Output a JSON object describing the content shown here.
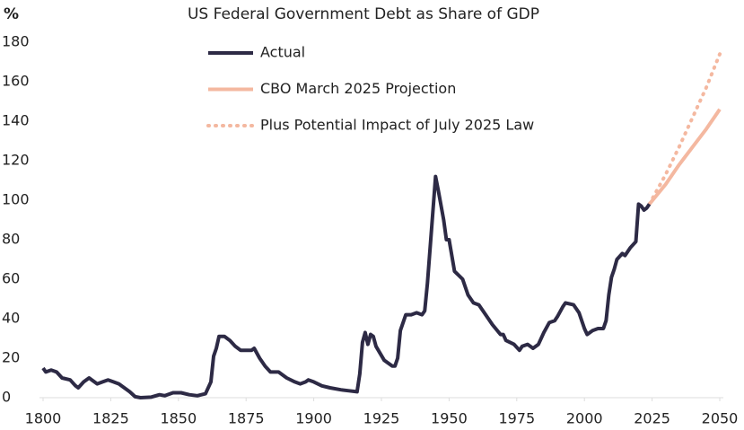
{
  "chart_data": {
    "type": "line",
    "title": "US Federal Government Debt as Share of GDP",
    "y_label": "%",
    "xlim": [
      1800,
      2050
    ],
    "xticks": [
      1800,
      1825,
      1850,
      1875,
      1900,
      1925,
      1950,
      1975,
      2000,
      2025,
      2050
    ],
    "ylim": [
      0,
      180
    ],
    "yticks": [
      0,
      20,
      40,
      60,
      80,
      100,
      120,
      140,
      160,
      180
    ],
    "grid": false,
    "legend": "top-left",
    "series": [
      {
        "name": "Actual",
        "color": "#2d2a45",
        "dash": "solid",
        "width": 4,
        "x": [
          1800,
          1801,
          1803,
          1805,
          1807,
          1810,
          1812,
          1813,
          1815,
          1817,
          1818,
          1820,
          1822,
          1824,
          1826,
          1828,
          1830,
          1832,
          1834,
          1836,
          1840,
          1843,
          1845,
          1848,
          1851,
          1854,
          1857,
          1860,
          1862,
          1863,
          1864,
          1865,
          1867,
          1869,
          1871,
          1873,
          1875,
          1877,
          1878,
          1880,
          1882,
          1884,
          1887,
          1890,
          1893,
          1895,
          1897,
          1898,
          1900,
          1903,
          1906,
          1910,
          1913,
          1916,
          1917,
          1918,
          1919,
          1920,
          1921,
          1922,
          1923,
          1926,
          1929,
          1930,
          1931,
          1932,
          1934,
          1936,
          1938,
          1940,
          1941,
          1942,
          1943,
          1945,
          1946,
          1948,
          1949,
          1950,
          1951,
          1952,
          1955,
          1957,
          1959,
          1961,
          1963,
          1966,
          1969,
          1970,
          1971,
          1974,
          1976,
          1977,
          1979,
          1980,
          1981,
          1983,
          1985,
          1987,
          1989,
          1990,
          1992,
          1993,
          1996,
          1998,
          2000,
          2001,
          2003,
          2005,
          2007,
          2008,
          2009,
          2010,
          2011,
          2012,
          2014,
          2015,
          2017,
          2019,
          2020,
          2021,
          2022,
          2023,
          2024
        ],
        "values": [
          15,
          13,
          14,
          13,
          10,
          9,
          6,
          5,
          8,
          10,
          9,
          7,
          8,
          9,
          8,
          7,
          5,
          3,
          0.5,
          0,
          0.3,
          1.5,
          1,
          2.5,
          2.5,
          1.5,
          1,
          2,
          8,
          21,
          25,
          31,
          31,
          29,
          26,
          24,
          24,
          24,
          25,
          20,
          16,
          13,
          13,
          10,
          8,
          7,
          8,
          9,
          8,
          6,
          5,
          4,
          3.5,
          3,
          12,
          28,
          33,
          27,
          32,
          31,
          26,
          19,
          16,
          16,
          20,
          34,
          42,
          42,
          43,
          42,
          44,
          58,
          76,
          112,
          105,
          90,
          80,
          80,
          72,
          64,
          60,
          52,
          48,
          47,
          43,
          37,
          32,
          32,
          29,
          27,
          24,
          26,
          27,
          26,
          25,
          27,
          33,
          38,
          39,
          41,
          46,
          48,
          47,
          43,
          35,
          32,
          34,
          35,
          35,
          39,
          52,
          61,
          65,
          70,
          73,
          72,
          76,
          79,
          98,
          97,
          95,
          96,
          98
        ]
      },
      {
        "name": "CBO March 2025 Projection",
        "color": "#f4b8a0",
        "dash": "solid",
        "width": 4,
        "x": [
          2024,
          2030,
          2035,
          2040,
          2045,
          2050
        ],
        "values": [
          98,
          108,
          118,
          127,
          136,
          146
        ]
      },
      {
        "name": "Plus Potential Impact of July 2025 Law",
        "color": "#f4b8a0",
        "dash": "dotted",
        "width": 4,
        "x": [
          2024,
          2030,
          2035,
          2040,
          2045,
          2050
        ],
        "values": [
          98,
          113,
          127,
          142,
          157,
          174
        ]
      }
    ]
  }
}
